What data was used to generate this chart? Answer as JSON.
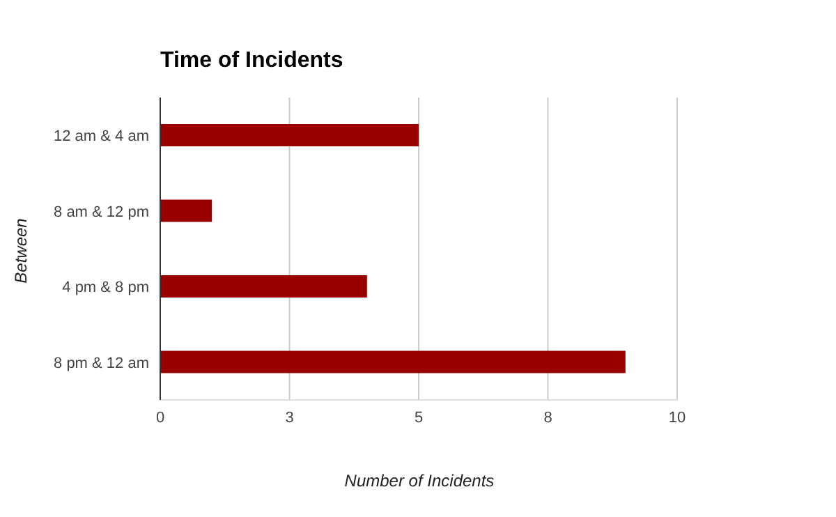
{
  "chart_data": {
    "type": "bar",
    "orientation": "horizontal",
    "title": "Time of Incidents",
    "xlabel": "Number of Incidents",
    "ylabel": "Between",
    "categories": [
      "12 am & 4 am",
      "8 am & 12 pm",
      "4 pm & 8 pm",
      "8 pm & 12 am"
    ],
    "values": [
      5,
      1,
      4,
      9
    ],
    "color": "#990000",
    "xlim": [
      0,
      10
    ],
    "xticks": [
      0,
      {
        "value": 2.5,
        "label": "3"
      },
      5,
      {
        "value": 7.5,
        "label": "8"
      },
      10
    ],
    "grid": "x"
  }
}
